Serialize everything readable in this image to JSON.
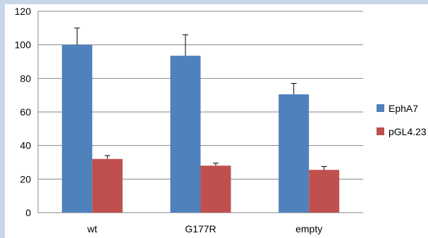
{
  "chart_data": {
    "type": "bar",
    "categories": [
      "wt",
      "G177R",
      "empty"
    ],
    "series": [
      {
        "name": "EphA7",
        "values": [
          100,
          93.5,
          70.5
        ],
        "errors": [
          10,
          12.5,
          6.5
        ],
        "color": "#4f81bd"
      },
      {
        "name": "pGL4.23",
        "values": [
          32,
          28,
          25.5
        ],
        "errors": [
          2,
          1.5,
          2
        ],
        "color": "#c0504d"
      }
    ],
    "ylim": [
      0,
      120
    ],
    "yticks": [
      "0",
      "20",
      "40",
      "60",
      "80",
      "100",
      "120"
    ],
    "grid": true,
    "legend": "right",
    "title": "",
    "xlabel": "",
    "ylabel": ""
  }
}
